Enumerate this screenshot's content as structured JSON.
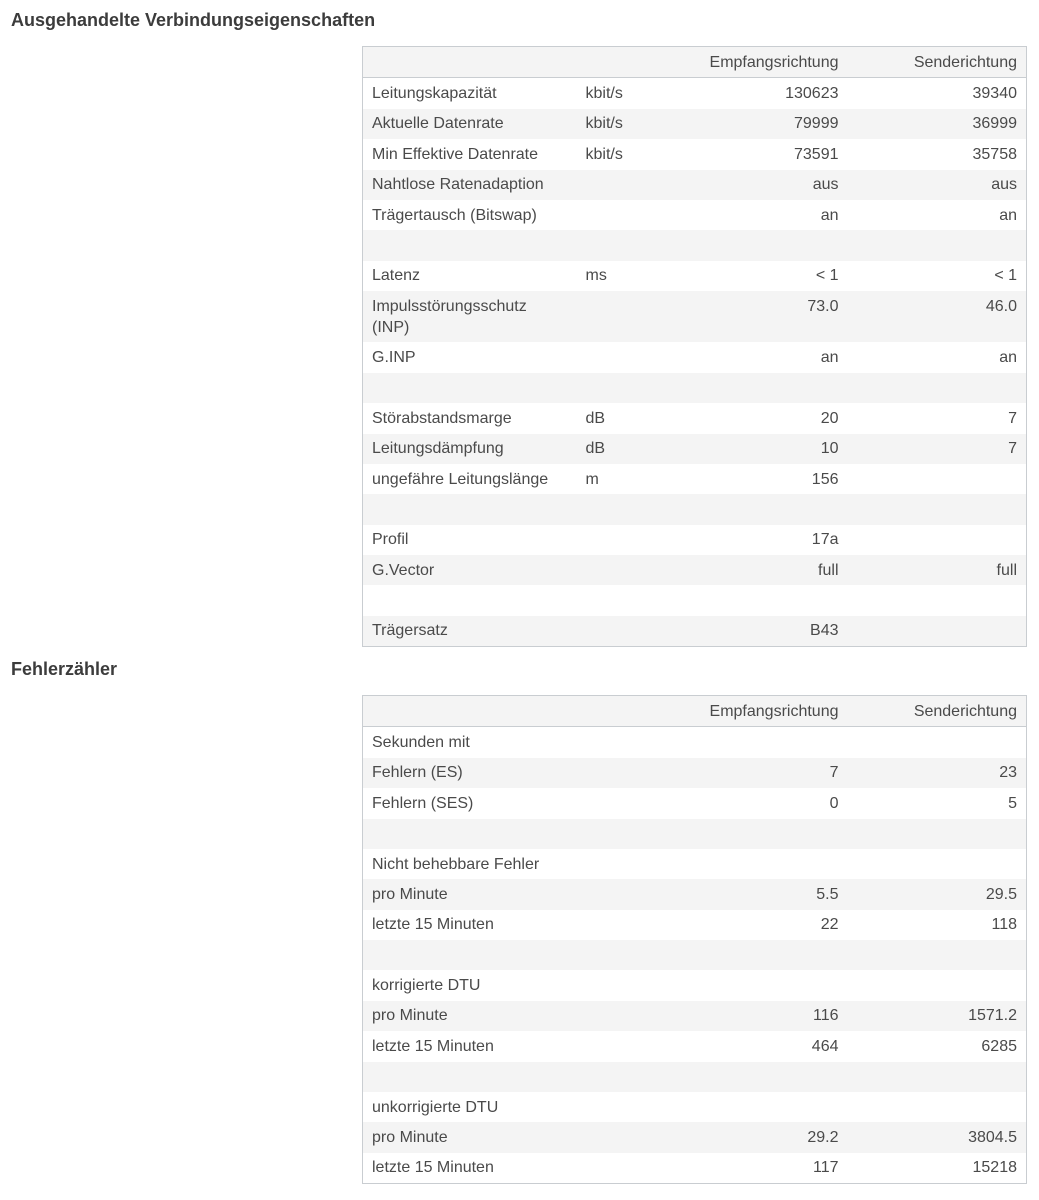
{
  "sections": [
    {
      "title": "Ausgehandelte Verbindungseigenschaften",
      "columns": [
        "Empfangsrichtung",
        "Senderichtung"
      ],
      "rows": [
        {
          "label": "Leitungskapazität",
          "unit": "kbit/s",
          "rx": "130623",
          "tx": "39340"
        },
        {
          "label": "Aktuelle Datenrate",
          "unit": "kbit/s",
          "rx": "79999",
          "tx": "36999"
        },
        {
          "label": "Min Effektive Datenrate",
          "unit": "kbit/s",
          "rx": "73591",
          "tx": "35758"
        },
        {
          "label": "Nahtlose Ratenadaption",
          "rx": "aus",
          "tx": "aus"
        },
        {
          "label": "Trägertausch (Bitswap)",
          "rx": "an",
          "tx": "an"
        },
        null,
        {
          "label": "Latenz",
          "unit": "ms",
          "rx": "< 1",
          "tx": "< 1"
        },
        {
          "label": "Impulsstörungsschutz (INP)",
          "rx": "73.0",
          "tx": "46.0"
        },
        {
          "label": "G.INP",
          "rx": "an",
          "tx": "an"
        },
        null,
        {
          "label": "Störabstandsmarge",
          "unit": "dB",
          "rx": "20",
          "tx": "7"
        },
        {
          "label": "Leitungsdämpfung",
          "unit": "dB",
          "rx": "10",
          "tx": "7"
        },
        {
          "label": "ungefähre Leitungslänge",
          "unit": "m",
          "rx": "156"
        },
        null,
        {
          "label": "Profil",
          "rx": "17a"
        },
        {
          "label": "G.Vector",
          "rx": "full",
          "tx": "full"
        },
        null,
        {
          "label": "Trägersatz",
          "rx": "B43"
        }
      ]
    },
    {
      "title": "Fehlerzähler",
      "columns": [
        "Empfangsrichtung",
        "Senderichtung"
      ],
      "rows": [
        {
          "label": "Sekunden mit"
        },
        {
          "label": "Fehlern (ES)",
          "rx": "7",
          "tx": "23"
        },
        {
          "label": "Fehlern (SES)",
          "rx": "0",
          "tx": "5"
        },
        null,
        {
          "label": "Nicht behebbare Fehler"
        },
        {
          "label": "pro Minute",
          "rx": "5.5",
          "tx": "29.5"
        },
        {
          "label": "letzte 15 Minuten",
          "rx": "22",
          "tx": "118"
        },
        null,
        {
          "label": "korrigierte DTU"
        },
        {
          "label": "pro Minute",
          "rx": "116",
          "tx": "1571.2"
        },
        {
          "label": "letzte 15 Minuten",
          "rx": "464",
          "tx": "6285"
        },
        null,
        {
          "label": "unkorrigierte DTU"
        },
        {
          "label": "pro Minute",
          "rx": "29.2",
          "tx": "3804.5"
        },
        {
          "label": "letzte 15 Minuten",
          "rx": "117",
          "tx": "15218"
        }
      ]
    }
  ]
}
